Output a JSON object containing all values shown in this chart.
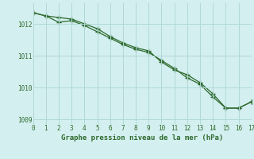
{
  "line1_x": [
    0,
    1,
    2,
    3,
    4,
    5,
    6,
    7,
    8,
    9,
    10,
    11,
    12,
    13,
    14,
    15,
    16,
    17
  ],
  "line1_y": [
    1012.35,
    1012.25,
    1012.05,
    1012.1,
    1011.95,
    1011.75,
    1011.55,
    1011.35,
    1011.2,
    1011.1,
    1010.85,
    1010.6,
    1010.3,
    1010.1,
    1009.7,
    1009.35,
    1009.35,
    1009.55
  ],
  "line2_x": [
    0,
    1,
    2,
    3,
    4,
    5,
    6,
    7,
    8,
    9,
    10,
    11,
    12,
    13,
    14,
    15,
    16,
    17
  ],
  "line2_y": [
    1012.35,
    1012.25,
    1012.2,
    1012.15,
    1012.0,
    1011.85,
    1011.6,
    1011.4,
    1011.25,
    1011.15,
    1010.8,
    1010.55,
    1010.4,
    1010.15,
    1009.8,
    1009.35,
    1009.35,
    1009.55
  ],
  "line_color": "#2d6a2d",
  "marker": "+",
  "markersize": 4,
  "linewidth": 0.9,
  "xlabel": "Graphe pression niveau de la mer (hPa)",
  "xlim": [
    0,
    17
  ],
  "ylim": [
    1008.85,
    1012.65
  ],
  "yticks": [
    1009,
    1010,
    1011,
    1012
  ],
  "xticks": [
    0,
    1,
    2,
    3,
    4,
    5,
    6,
    7,
    8,
    9,
    10,
    11,
    12,
    13,
    14,
    15,
    16,
    17
  ],
  "bg_color": "#d4efef",
  "grid_color": "#b0d8d8",
  "text_color": "#2d6a2d",
  "tick_fontsize": 5.5,
  "xlabel_fontsize": 6.5
}
